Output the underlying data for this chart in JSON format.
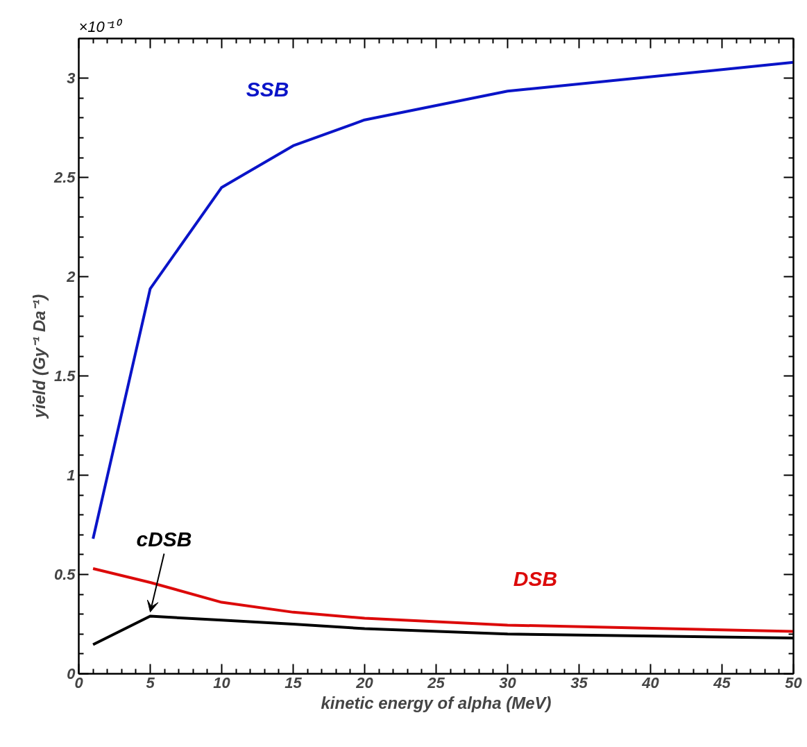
{
  "chart_data": {
    "type": "line",
    "xlabel": "kinetic energy of alpha (MeV)",
    "ylabel": "yield (Gy⁻¹ Da⁻¹)",
    "annotations": [
      "×10⁻¹⁰",
      {
        "text": "cDSB",
        "x": 5,
        "y": 0.29
      }
    ],
    "x": [
      1,
      5,
      10,
      15,
      20,
      30,
      50
    ],
    "series": [
      {
        "name": "SSB",
        "color": "#0a14c8",
        "values": [
          0.68,
          1.94,
          2.45,
          2.66,
          2.79,
          2.935,
          3.08
        ]
      },
      {
        "name": "DSB",
        "color": "#dc0a0a",
        "values": [
          0.53,
          0.46,
          0.36,
          0.31,
          0.28,
          0.245,
          0.213
        ]
      },
      {
        "color": "#000000",
        "values": [
          0.147,
          0.29,
          0.27,
          0.25,
          0.227,
          0.2,
          0.18
        ]
      }
    ],
    "xlim": [
      0,
      50
    ],
    "xticks": [
      0,
      5,
      10,
      15,
      20,
      25,
      30,
      35,
      40,
      45,
      50
    ],
    "ylim": [
      0,
      3.2
    ],
    "yticks": [
      0,
      0.5,
      1,
      1.5,
      2,
      2.5,
      3
    ],
    "grid": false,
    "marker": "none",
    "line_style": "solid"
  }
}
